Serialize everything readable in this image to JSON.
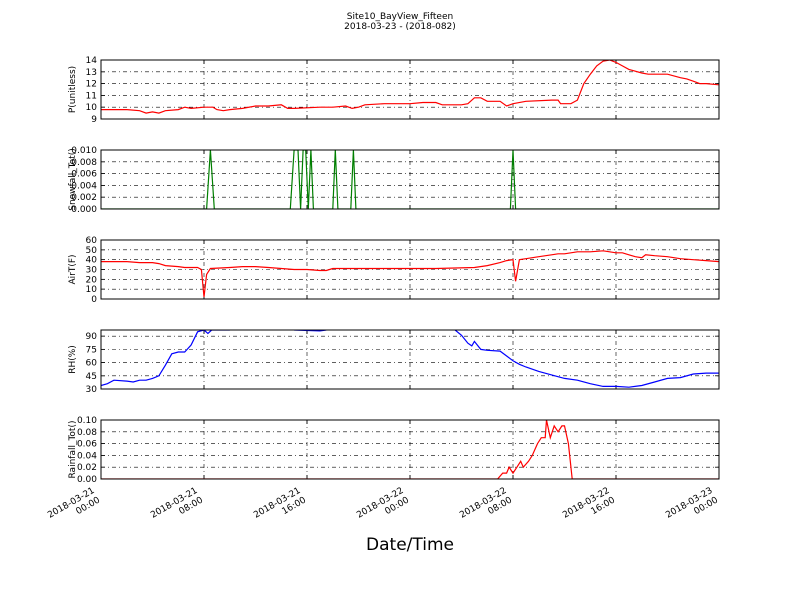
{
  "chart_data": {
    "title": "Site10_BayView_Fifteen",
    "subtitle": "2018-03-23 - (2018-082)",
    "xlabel": "Date/Time",
    "x_ticks": [
      {
        "t": 0,
        "line1": "2018-03-21",
        "line2": "00:00"
      },
      {
        "t": 8,
        "line1": "2018-03-21",
        "line2": "08:00"
      },
      {
        "t": 16,
        "line1": "2018-03-21",
        "line2": "16:00"
      },
      {
        "t": 24,
        "line1": "2018-03-22",
        "line2": "00:00"
      },
      {
        "t": 32,
        "line1": "2018-03-22",
        "line2": "08:00"
      },
      {
        "t": 40,
        "line1": "2018-03-22",
        "line2": "16:00"
      },
      {
        "t": 48,
        "line1": "2018-03-23",
        "line2": "00:00"
      }
    ],
    "xlim_hours": [
      0,
      48
    ],
    "panels": [
      {
        "type": "line",
        "ylabel": "P(unitless)",
        "ylim": [
          9,
          14
        ],
        "yticks": [
          9,
          10,
          11,
          12,
          13,
          14
        ],
        "ytick_labels": [
          "9",
          "10",
          "11",
          "12",
          "13",
          "14"
        ],
        "color": "#ff0000",
        "points": [
          [
            0,
            9.8
          ],
          [
            1,
            9.8
          ],
          [
            2,
            9.8
          ],
          [
            3,
            9.7
          ],
          [
            3.5,
            9.5
          ],
          [
            4,
            9.6
          ],
          [
            4.5,
            9.5
          ],
          [
            5,
            9.7
          ],
          [
            6,
            9.8
          ],
          [
            6.5,
            10.0
          ],
          [
            7,
            9.9
          ],
          [
            8,
            10.0
          ],
          [
            8.7,
            10.0
          ],
          [
            9,
            9.8
          ],
          [
            9.5,
            9.7
          ],
          [
            10,
            9.8
          ],
          [
            11,
            9.9
          ],
          [
            12,
            10.1
          ],
          [
            13,
            10.1
          ],
          [
            14,
            10.2
          ],
          [
            14.5,
            9.9
          ],
          [
            15,
            9.9
          ],
          [
            17,
            10.0
          ],
          [
            18,
            10.0
          ],
          [
            19,
            10.1
          ],
          [
            19.5,
            9.9
          ],
          [
            20,
            10.0
          ],
          [
            20.5,
            10.2
          ],
          [
            22,
            10.3
          ],
          [
            24,
            10.3
          ],
          [
            25,
            10.4
          ],
          [
            26,
            10.4
          ],
          [
            26.5,
            10.2
          ],
          [
            27,
            10.2
          ],
          [
            28,
            10.2
          ],
          [
            28.5,
            10.3
          ],
          [
            29,
            10.8
          ],
          [
            29.5,
            10.8
          ],
          [
            30,
            10.5
          ],
          [
            31,
            10.5
          ],
          [
            31.5,
            10.1
          ],
          [
            32,
            10.3
          ],
          [
            33,
            10.5
          ],
          [
            35,
            10.6
          ],
          [
            35.5,
            10.6
          ],
          [
            35.7,
            10.3
          ],
          [
            36.5,
            10.3
          ],
          [
            37,
            10.6
          ],
          [
            37.5,
            12.0
          ],
          [
            38,
            12.8
          ],
          [
            38.5,
            13.5
          ],
          [
            39,
            13.9
          ],
          [
            39.5,
            14.0
          ],
          [
            40,
            13.8
          ],
          [
            40.5,
            13.5
          ],
          [
            41,
            13.2
          ],
          [
            42,
            12.9
          ],
          [
            42.5,
            12.8
          ],
          [
            43,
            12.8
          ],
          [
            44,
            12.8
          ],
          [
            45,
            12.5
          ],
          [
            45.5,
            12.4
          ],
          [
            46,
            12.2
          ],
          [
            46.5,
            12.0
          ],
          [
            47,
            12.0
          ],
          [
            48,
            11.9
          ]
        ]
      },
      {
        "type": "line",
        "ylabel": "Snowfall_Tot()",
        "ylim": [
          0,
          0.01
        ],
        "yticks": [
          0,
          0.002,
          0.004,
          0.006,
          0.008,
          0.01
        ],
        "ytick_labels": [
          "0.000",
          "0.002",
          "0.004",
          "0.006",
          "0.008",
          "0.010"
        ],
        "color": "#007f00",
        "points": [
          [
            0,
            0
          ],
          [
            8.2,
            0
          ],
          [
            8.5,
            0.01
          ],
          [
            8.8,
            0
          ],
          [
            14.7,
            0
          ],
          [
            15,
            0.01
          ],
          [
            15.3,
            0.01
          ],
          [
            15.5,
            0
          ],
          [
            15.7,
            0.01
          ],
          [
            15.9,
            0.01
          ],
          [
            16.1,
            0
          ],
          [
            16.3,
            0.01
          ],
          [
            16.5,
            0
          ],
          [
            18,
            0
          ],
          [
            18.2,
            0.01
          ],
          [
            18.4,
            0
          ],
          [
            19.4,
            0
          ],
          [
            19.6,
            0.01
          ],
          [
            19.8,
            0
          ],
          [
            31.8,
            0
          ],
          [
            32,
            0.01
          ],
          [
            32.2,
            0
          ],
          [
            48,
            0
          ]
        ]
      },
      {
        "type": "line",
        "ylabel": "AirT(F)",
        "ylim": [
          0,
          60
        ],
        "yticks": [
          0,
          10,
          20,
          30,
          40,
          50,
          60
        ],
        "ytick_labels": [
          "0",
          "10",
          "20",
          "30",
          "40",
          "50",
          "60"
        ],
        "color": "#ff0000",
        "points": [
          [
            0,
            38
          ],
          [
            2,
            38
          ],
          [
            3,
            37
          ],
          [
            4,
            37
          ],
          [
            4.5,
            36
          ],
          [
            5,
            34
          ],
          [
            6,
            33
          ],
          [
            6.5,
            32
          ],
          [
            7,
            32
          ],
          [
            7.5,
            32
          ],
          [
            7.8,
            30
          ],
          [
            8,
            2
          ],
          [
            8.2,
            25
          ],
          [
            8.5,
            31
          ],
          [
            10,
            32
          ],
          [
            11,
            33
          ],
          [
            12,
            33
          ],
          [
            13,
            32
          ],
          [
            14,
            31
          ],
          [
            15,
            30
          ],
          [
            16,
            30
          ],
          [
            17,
            29
          ],
          [
            17.5,
            29
          ],
          [
            18,
            31
          ],
          [
            19,
            31
          ],
          [
            22,
            31
          ],
          [
            26,
            31
          ],
          [
            29,
            32
          ],
          [
            30,
            34
          ],
          [
            31,
            37
          ],
          [
            31.5,
            39
          ],
          [
            32,
            40
          ],
          [
            32.2,
            18
          ],
          [
            32.5,
            40
          ],
          [
            33,
            41
          ],
          [
            34,
            43
          ],
          [
            35,
            45
          ],
          [
            35.5,
            46
          ],
          [
            36,
            46
          ],
          [
            37,
            48
          ],
          [
            38,
            48
          ],
          [
            39,
            49
          ],
          [
            39.5,
            48
          ],
          [
            40,
            47
          ],
          [
            40.5,
            47
          ],
          [
            41,
            45
          ],
          [
            41.5,
            43
          ],
          [
            42,
            42
          ],
          [
            42.3,
            45
          ],
          [
            43,
            44
          ],
          [
            44,
            43
          ],
          [
            45,
            41
          ],
          [
            46,
            40
          ],
          [
            47,
            39
          ],
          [
            48,
            38
          ]
        ]
      },
      {
        "type": "line",
        "ylabel": "RH(%)",
        "ylim": [
          30,
          97
        ],
        "yticks": [
          30,
          45,
          60,
          75,
          90
        ],
        "ytick_labels": [
          "30",
          "45",
          "60",
          "75",
          "90"
        ],
        "color": "#0000ff",
        "points": [
          [
            0,
            34
          ],
          [
            0.5,
            36
          ],
          [
            1,
            40
          ],
          [
            2,
            39
          ],
          [
            2.5,
            38
          ],
          [
            3,
            40
          ],
          [
            3.5,
            40
          ],
          [
            4,
            42
          ],
          [
            4.5,
            45
          ],
          [
            5,
            57
          ],
          [
            5.5,
            70
          ],
          [
            6,
            72
          ],
          [
            6.5,
            72
          ],
          [
            7,
            80
          ],
          [
            7.5,
            95
          ],
          [
            8,
            97
          ],
          [
            8.3,
            93
          ],
          [
            8.6,
            97
          ],
          [
            10,
            97
          ],
          [
            null,
            null
          ],
          [
            15,
            97
          ],
          [
            17,
            96
          ],
          [
            17.5,
            97
          ],
          [
            null,
            null
          ],
          [
            27.5,
            97
          ],
          [
            28,
            91
          ],
          [
            28.5,
            82
          ],
          [
            28.8,
            79
          ],
          [
            29,
            84
          ],
          [
            29.5,
            75
          ],
          [
            30,
            74
          ],
          [
            31,
            73
          ],
          [
            32,
            62
          ],
          [
            32.5,
            58
          ],
          [
            33,
            55
          ],
          [
            34,
            50
          ],
          [
            35,
            46
          ],
          [
            36,
            42
          ],
          [
            37,
            40
          ],
          [
            38,
            36
          ],
          [
            39,
            33
          ],
          [
            40,
            33
          ],
          [
            41,
            32
          ],
          [
            42,
            34
          ],
          [
            43,
            38
          ],
          [
            44,
            42
          ],
          [
            45,
            43
          ],
          [
            46,
            47
          ],
          [
            47,
            48
          ],
          [
            48,
            48
          ]
        ]
      },
      {
        "type": "line",
        "ylabel": "Rainfall_Tot()",
        "ylim": [
          0,
          0.1
        ],
        "yticks": [
          0,
          0.02,
          0.04,
          0.06,
          0.08,
          0.1
        ],
        "ytick_labels": [
          "0.00",
          "0.02",
          "0.04",
          "0.06",
          "0.08",
          "0.10"
        ],
        "color": "#ff0000",
        "points": [
          [
            0,
            0
          ],
          [
            30.8,
            0
          ],
          [
            31.2,
            0.01
          ],
          [
            31.5,
            0.01
          ],
          [
            31.7,
            0.02
          ],
          [
            32,
            0.01
          ],
          [
            32.3,
            0.02
          ],
          [
            32.6,
            0.03
          ],
          [
            32.8,
            0.02
          ],
          [
            33.2,
            0.03
          ],
          [
            33.5,
            0.04
          ],
          [
            33.9,
            0.06
          ],
          [
            34.2,
            0.07
          ],
          [
            34.5,
            0.07
          ],
          [
            34.6,
            0.1
          ],
          [
            34.9,
            0.07
          ],
          [
            35.2,
            0.09
          ],
          [
            35.5,
            0.08
          ],
          [
            35.8,
            0.09
          ],
          [
            36,
            0.09
          ],
          [
            36.3,
            0.06
          ],
          [
            36.6,
            0
          ],
          [
            48,
            0
          ]
        ]
      }
    ]
  }
}
